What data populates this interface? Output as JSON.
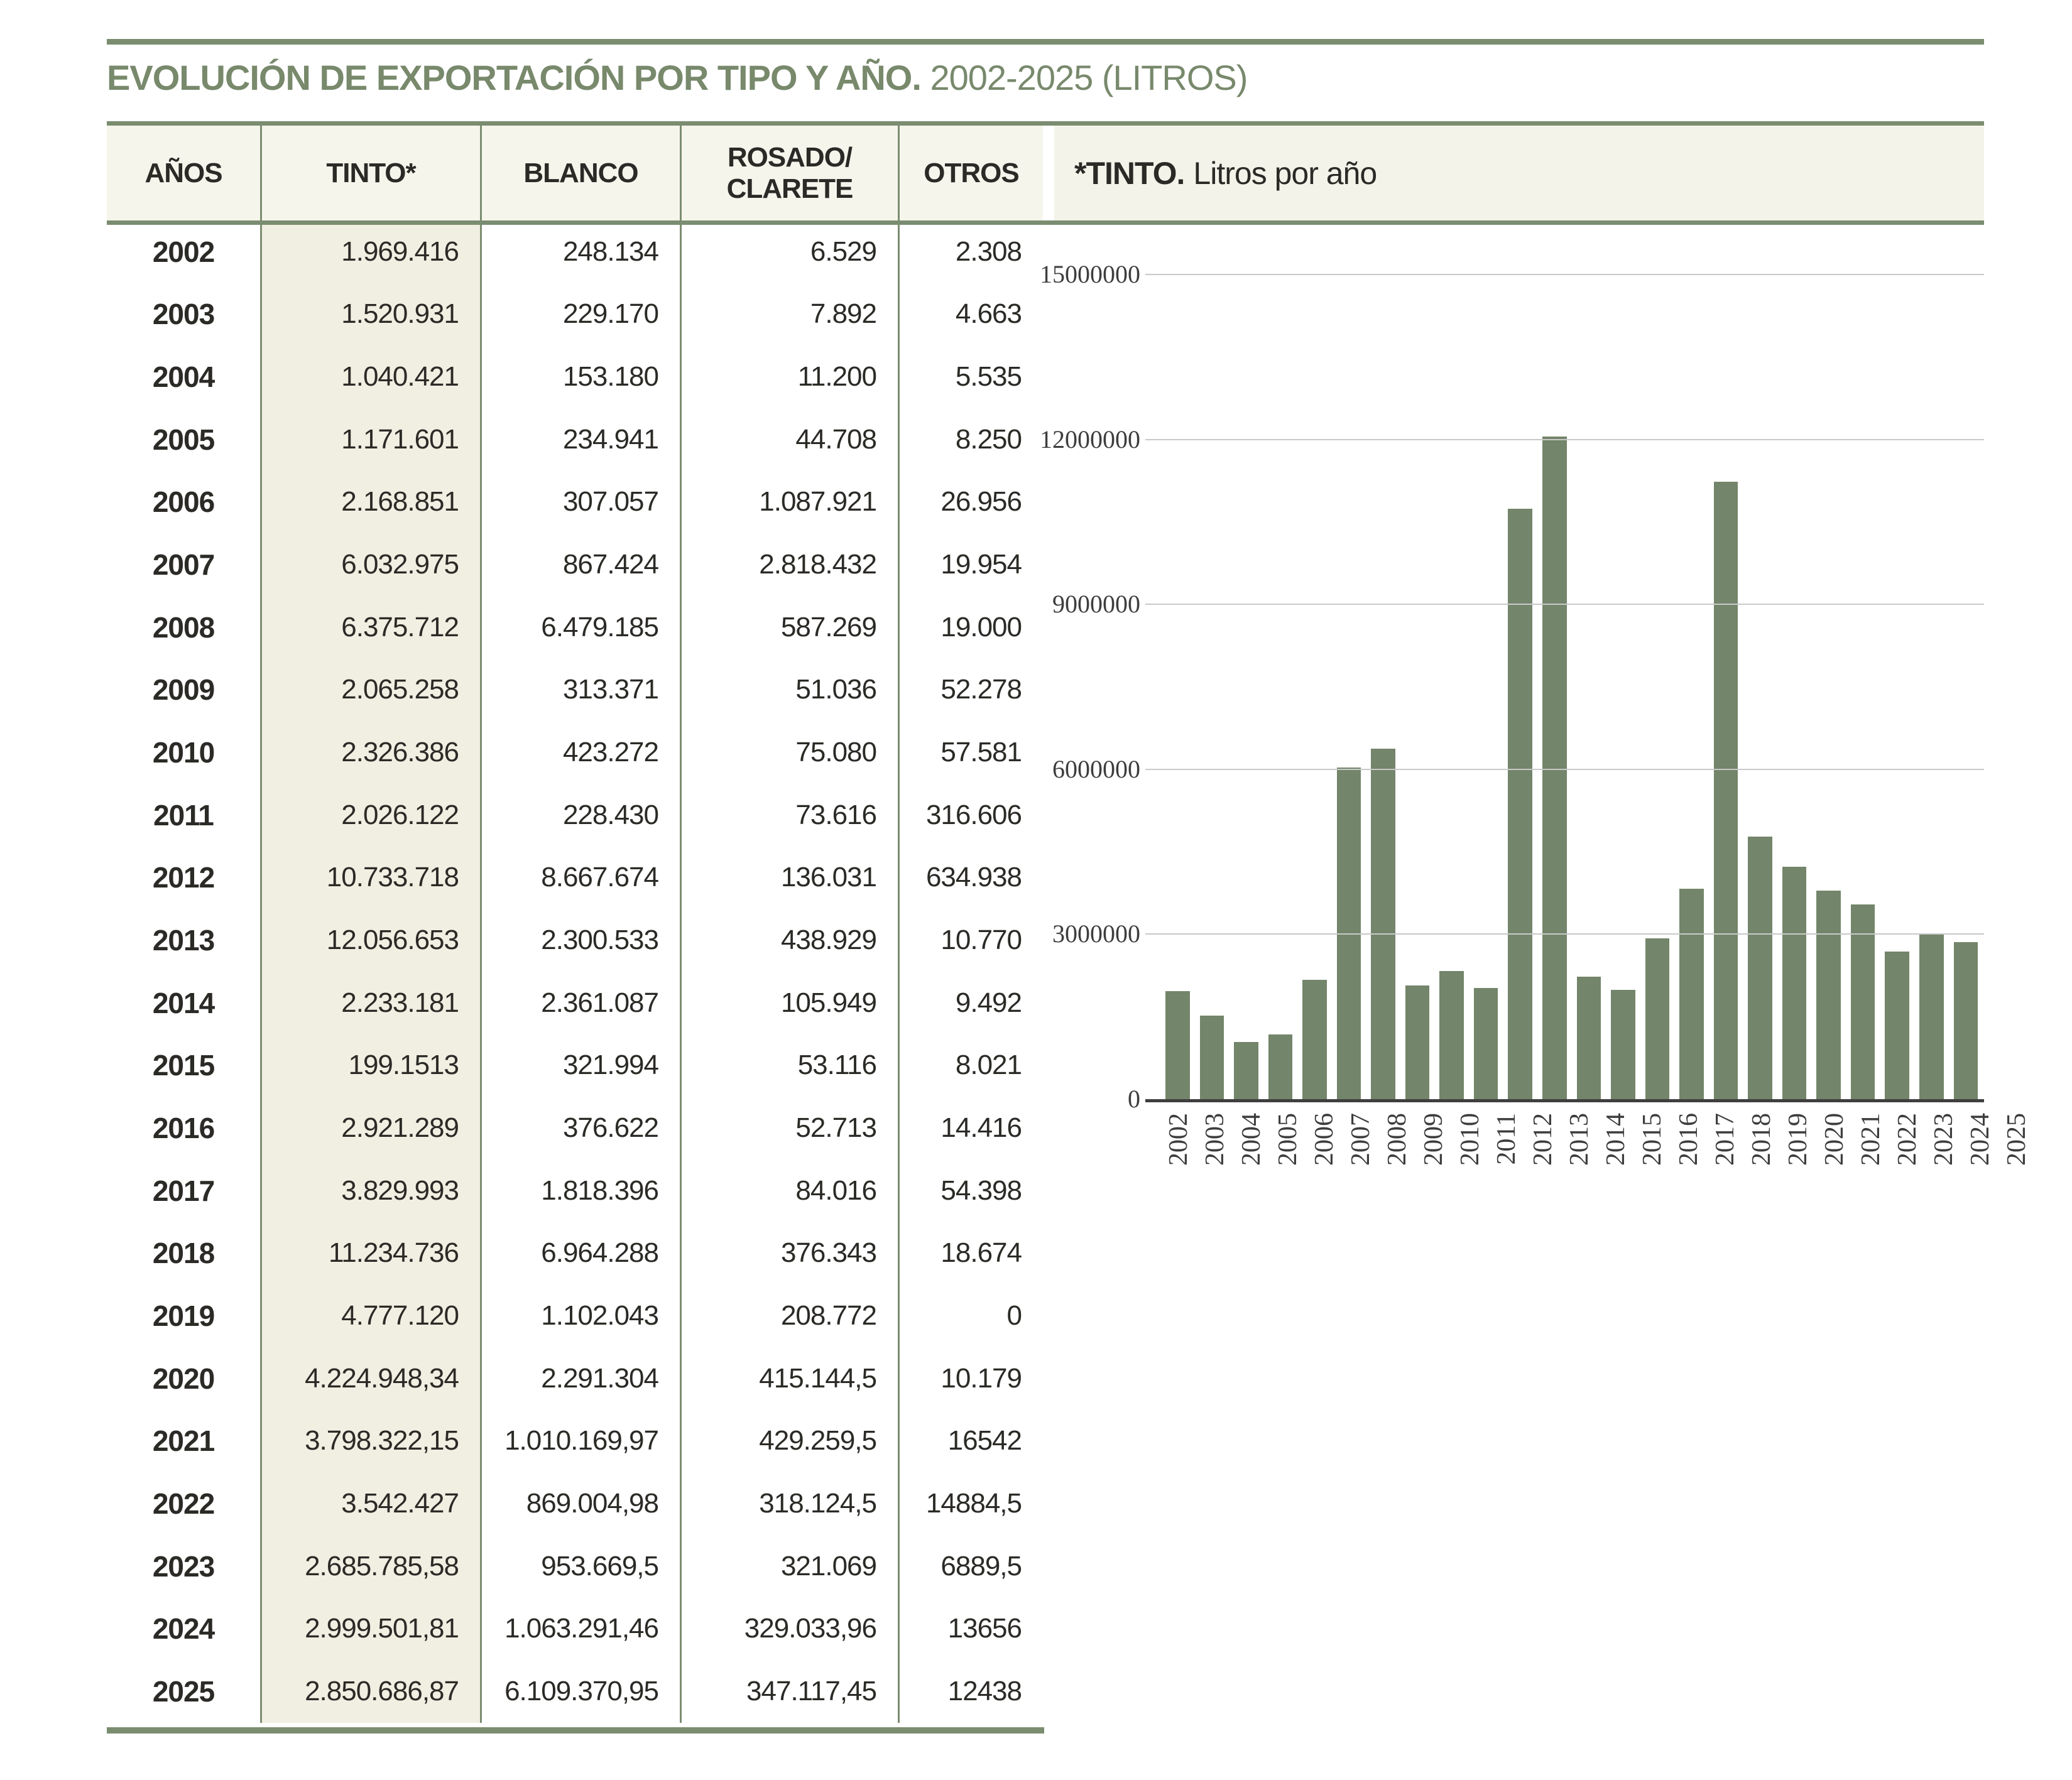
{
  "title": {
    "bold": "EVOLUCIÓN DE EXPORTACIÓN POR TIPO Y AÑO.",
    "regular": " 2002-2025 (LITROS)"
  },
  "table": {
    "columns": [
      [
        "AÑOS"
      ],
      [
        "TINTO*"
      ],
      [
        "BLANCO"
      ],
      [
        "ROSADO/",
        "CLARETE"
      ],
      [
        "OTROS"
      ]
    ],
    "rows": [
      {
        "year": "2002",
        "tinto": "1.969.416",
        "blanco": "248.134",
        "rosado": "6.529",
        "otros": "2.308"
      },
      {
        "year": "2003",
        "tinto": "1.520.931",
        "blanco": "229.170",
        "rosado": "7.892",
        "otros": "4.663"
      },
      {
        "year": "2004",
        "tinto": "1.040.421",
        "blanco": "153.180",
        "rosado": "11.200",
        "otros": "5.535"
      },
      {
        "year": "2005",
        "tinto": "1.171.601",
        "blanco": "234.941",
        "rosado": "44.708",
        "otros": "8.250"
      },
      {
        "year": "2006",
        "tinto": "2.168.851",
        "blanco": "307.057",
        "rosado": "1.087.921",
        "otros": "26.956"
      },
      {
        "year": "2007",
        "tinto": "6.032.975",
        "blanco": "867.424",
        "rosado": "2.818.432",
        "otros": "19.954"
      },
      {
        "year": "2008",
        "tinto": "6.375.712",
        "blanco": "6.479.185",
        "rosado": "587.269",
        "otros": "19.000"
      },
      {
        "year": "2009",
        "tinto": "2.065.258",
        "blanco": "313.371",
        "rosado": "51.036",
        "otros": "52.278"
      },
      {
        "year": "2010",
        "tinto": "2.326.386",
        "blanco": "423.272",
        "rosado": "75.080",
        "otros": "57.581"
      },
      {
        "year": "2011",
        "tinto": "2.026.122",
        "blanco": "228.430",
        "rosado": "73.616",
        "otros": "316.606"
      },
      {
        "year": "2012",
        "tinto": "10.733.718",
        "blanco": "8.667.674",
        "rosado": "136.031",
        "otros": "634.938"
      },
      {
        "year": "2013",
        "tinto": "12.056.653",
        "blanco": "2.300.533",
        "rosado": "438.929",
        "otros": "10.770"
      },
      {
        "year": "2014",
        "tinto": "2.233.181",
        "blanco": "2.361.087",
        "rosado": "105.949",
        "otros": "9.492"
      },
      {
        "year": "2015",
        "tinto": "199.1513",
        "blanco": "321.994",
        "rosado": "53.116",
        "otros": "8.021"
      },
      {
        "year": "2016",
        "tinto": "2.921.289",
        "blanco": "376.622",
        "rosado": "52.713",
        "otros": "14.416"
      },
      {
        "year": "2017",
        "tinto": "3.829.993",
        "blanco": "1.818.396",
        "rosado": "84.016",
        "otros": "54.398"
      },
      {
        "year": "2018",
        "tinto": "11.234.736",
        "blanco": "6.964.288",
        "rosado": "376.343",
        "otros": "18.674"
      },
      {
        "year": "2019",
        "tinto": "4.777.120",
        "blanco": "1.102.043",
        "rosado": "208.772",
        "otros": "0"
      },
      {
        "year": "2020",
        "tinto": "4.224.948,34",
        "blanco": "2.291.304",
        "rosado": "415.144,5",
        "otros": "10.179"
      },
      {
        "year": "2021",
        "tinto": "3.798.322,15",
        "blanco": "1.010.169,97",
        "rosado": "429.259,5",
        "otros": "16542"
      },
      {
        "year": "2022",
        "tinto": "3.542.427",
        "blanco": "869.004,98",
        "rosado": "318.124,5",
        "otros": "14884,5"
      },
      {
        "year": "2023",
        "tinto": "2.685.785,58",
        "blanco": "953.669,5",
        "rosado": "321.069",
        "otros": "6889,5"
      },
      {
        "year": "2024",
        "tinto": "2.999.501,81",
        "blanco": "1.063.291,46",
        "rosado": "329.033,96",
        "otros": "13656"
      },
      {
        "year": "2025",
        "tinto": "2.850.686,87",
        "blanco": "6.109.370,95",
        "rosado": "347.117,45",
        "otros": "12438"
      }
    ]
  },
  "chart": {
    "header_bold": "*TINTO.",
    "header_regular": "Litros por año"
  },
  "chart_data": {
    "type": "bar",
    "title": "*TINTO. Litros por año",
    "categories": [
      "2002",
      "2003",
      "2004",
      "2005",
      "2006",
      "2007",
      "2008",
      "2009",
      "2010",
      "2011",
      "2012",
      "2013",
      "2014",
      "2015",
      "2016",
      "2017",
      "2018",
      "2019",
      "2020",
      "2021",
      "2022",
      "2023",
      "2024",
      "2025"
    ],
    "values": [
      1969416,
      1520931,
      1040421,
      1171601,
      2168851,
      6032975,
      6375712,
      2065258,
      2326386,
      2026122,
      10733718,
      12056653,
      2233181,
      1991513,
      2921289,
      3829993,
      11234736,
      4777120,
      4224948,
      3798322,
      3542427,
      2685786,
      2999502,
      2850687
    ],
    "xlabel": "",
    "ylabel": "",
    "ylim": [
      0,
      15000000
    ],
    "yticks": [
      0,
      3000000,
      6000000,
      9000000,
      12000000,
      15000000
    ],
    "grid": true,
    "legend": "none",
    "bar_color": "#73856a"
  },
  "colors": {
    "accent_green": "#78896c",
    "rule_green": "#7b8d70",
    "bar_green": "#73856a",
    "band_beige": "#f4f3e9",
    "tinto_column_beige": "#f1efe2",
    "header_row_beige": "#f6f5ec",
    "grid_gray": "#c9c9c9",
    "axis_dark": "#3f3f3f",
    "text_dark": "#2b2a26"
  }
}
